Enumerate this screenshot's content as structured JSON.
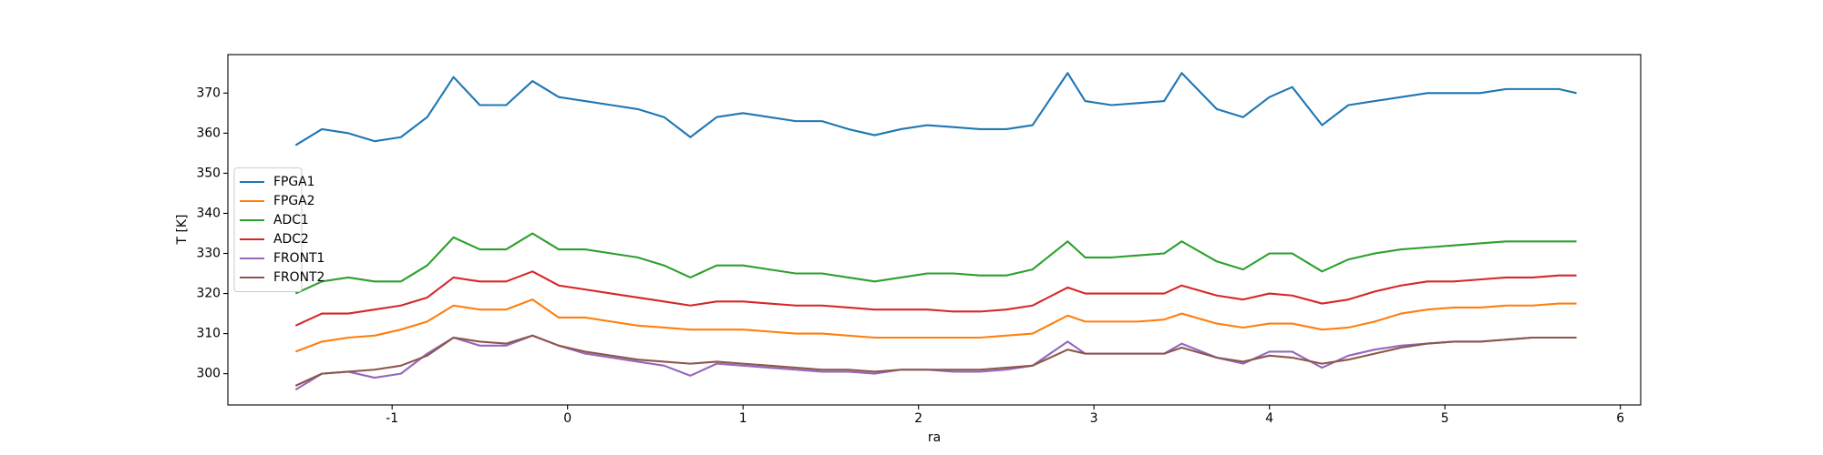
{
  "chart_data": {
    "type": "line",
    "xlabel": "ra",
    "ylabel": "T [K]",
    "x": [
      -1.55,
      -1.4,
      -1.25,
      -1.1,
      -0.95,
      -0.8,
      -0.65,
      -0.5,
      -0.35,
      -0.2,
      -0.05,
      0.1,
      0.25,
      0.4,
      0.55,
      0.7,
      0.85,
      1.0,
      1.15,
      1.3,
      1.45,
      1.6,
      1.75,
      1.9,
      2.05,
      2.2,
      2.35,
      2.5,
      2.65,
      2.85,
      2.95,
      3.1,
      3.25,
      3.4,
      3.5,
      3.7,
      3.85,
      4.0,
      4.13,
      4.3,
      4.45,
      4.6,
      4.75,
      4.9,
      5.05,
      5.2,
      5.35,
      5.5,
      5.65,
      5.75
    ],
    "series": [
      {
        "name": "FPGA1",
        "color": "#1f77b4",
        "values": [
          357,
          361,
          360,
          358,
          359,
          364,
          374,
          367,
          367,
          373,
          369,
          368,
          367,
          366,
          364,
          359,
          364,
          365,
          364,
          363,
          363,
          361,
          359.5,
          361,
          362,
          361.5,
          361,
          361,
          362,
          375,
          368,
          367,
          367.5,
          368,
          375,
          366,
          364,
          369,
          371.5,
          362,
          367,
          368,
          369,
          370,
          370,
          370,
          371,
          371,
          371,
          370
        ]
      },
      {
        "name": "FPGA2",
        "color": "#ff7f0e",
        "values": [
          305.5,
          308,
          309,
          309.5,
          311,
          313,
          317,
          316,
          316,
          318.5,
          314,
          314,
          313,
          312,
          311.5,
          311,
          311,
          311,
          310.5,
          310,
          310,
          309.5,
          309,
          309,
          309,
          309,
          309,
          309.5,
          310,
          314.5,
          313,
          313,
          313,
          313.5,
          315,
          312.5,
          311.5,
          312.5,
          312.5,
          311,
          311.5,
          313,
          315,
          316,
          316.5,
          316.5,
          317,
          317,
          317.5,
          317.5
        ]
      },
      {
        "name": "ADC1",
        "color": "#2ca02c",
        "values": [
          320,
          323,
          324,
          323,
          323,
          327,
          334,
          331,
          331,
          335,
          331,
          331,
          330,
          329,
          327,
          324,
          327,
          327,
          326,
          325,
          325,
          324,
          323,
          324,
          325,
          325,
          324.5,
          324.5,
          326,
          333,
          329,
          329,
          329.5,
          330,
          333,
          328,
          326,
          330,
          330,
          325.5,
          328.5,
          330,
          331,
          331.5,
          332,
          332.5,
          333,
          333,
          333,
          333
        ]
      },
      {
        "name": "ADC2",
        "color": "#d62728",
        "values": [
          312,
          315,
          315,
          316,
          317,
          319,
          324,
          323,
          323,
          325.5,
          322,
          321,
          320,
          319,
          318,
          317,
          318,
          318,
          317.5,
          317,
          317,
          316.5,
          316,
          316,
          316,
          315.5,
          315.5,
          316,
          317,
          321.5,
          320,
          320,
          320,
          320,
          322,
          319.5,
          318.5,
          320,
          319.5,
          317.5,
          318.5,
          320.5,
          322,
          323,
          323,
          323.5,
          324,
          324,
          324.5,
          324.5
        ]
      },
      {
        "name": "FRONT1",
        "color": "#9467bd",
        "values": [
          296,
          300,
          300.5,
          299,
          300,
          305,
          309,
          307,
          307,
          309.5,
          307,
          305,
          304,
          303,
          302,
          299.5,
          302.5,
          302,
          301.5,
          301,
          300.5,
          300.5,
          300,
          301,
          301,
          300.5,
          300.5,
          301,
          302,
          308,
          305,
          305,
          305,
          305,
          307.5,
          304,
          302.5,
          305.5,
          305.5,
          301.5,
          304.5,
          306,
          307,
          307.5,
          308,
          308,
          308.5,
          309,
          309,
          309
        ]
      },
      {
        "name": "FRONT2",
        "color": "#8c564b",
        "values": [
          297,
          300,
          300.5,
          301,
          302,
          304.5,
          309,
          308,
          307.5,
          309.5,
          307,
          305.5,
          304.5,
          303.5,
          303,
          302.5,
          303,
          302.5,
          302,
          301.5,
          301,
          301,
          300.5,
          301,
          301,
          301,
          301,
          301.5,
          302,
          306,
          305,
          305,
          305,
          305,
          306.5,
          304,
          303,
          304.5,
          304,
          302.5,
          303.5,
          305,
          306.5,
          307.5,
          308,
          308,
          308.5,
          309,
          309,
          309
        ]
      }
    ],
    "xlim": [
      -1.936,
      6.116
    ],
    "xticks": [
      -1,
      0,
      1,
      2,
      3,
      4,
      5,
      6
    ],
    "ylim": [
      292.2,
      379.6
    ],
    "yticks": [
      300,
      310,
      320,
      330,
      340,
      350,
      360,
      370
    ],
    "legend": "center left"
  }
}
